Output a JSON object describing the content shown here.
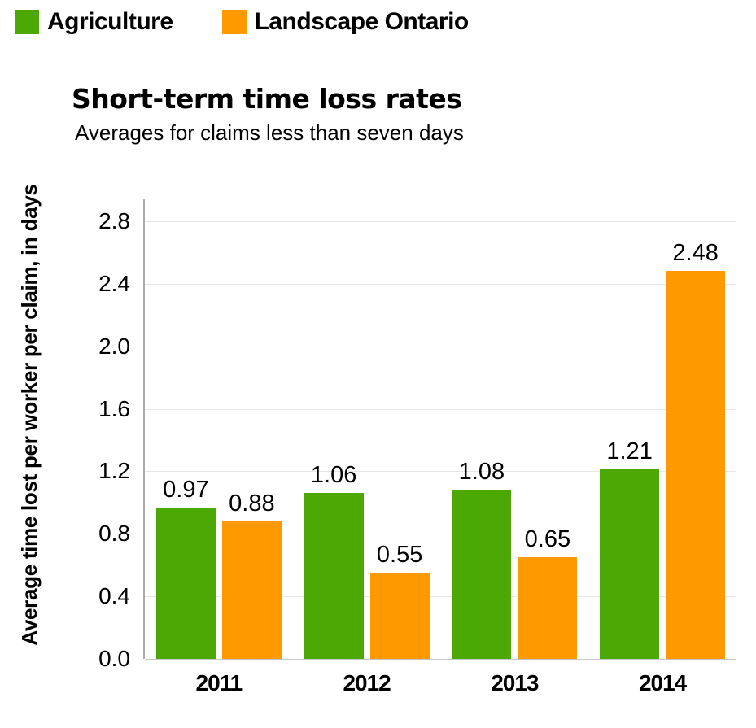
{
  "legend": {
    "items": [
      {
        "label": "Agriculture",
        "color": "#4CA805"
      },
      {
        "label": "Landscape Ontario",
        "color": "#FF9900"
      }
    ]
  },
  "chart_data": {
    "type": "bar",
    "title": "Short-term time loss rates",
    "subtitle": "Averages for claims less than seven days",
    "xlabel": "",
    "ylabel": "Average time lost per worker per claim, in days",
    "categories": [
      "2011",
      "2012",
      "2013",
      "2014"
    ],
    "series": [
      {
        "name": "Agriculture",
        "color": "#4CA805",
        "values": [
          0.97,
          1.06,
          1.08,
          1.21
        ]
      },
      {
        "name": "Landscape Ontario",
        "color": "#FF9900",
        "values": [
          0.88,
          0.55,
          0.65,
          2.48
        ]
      }
    ],
    "bar_labels": true,
    "ylim": [
      0,
      2.94
    ],
    "yticks": [
      0.0,
      0.4,
      0.8,
      1.2,
      1.6,
      2.0,
      2.4,
      2.8
    ],
    "ytick_labels": [
      "0.0",
      "0.4",
      "0.8",
      "1.2",
      "1.6",
      "2.0",
      "2.4",
      "2.8"
    ],
    "grid": "horizontal",
    "legend_position": "top-left",
    "colors": {
      "gridline": "#E7E7E7",
      "y_axis_line": "#ABABAB",
      "x_axis_line": "#C8C8C8",
      "text": "#000000"
    }
  }
}
